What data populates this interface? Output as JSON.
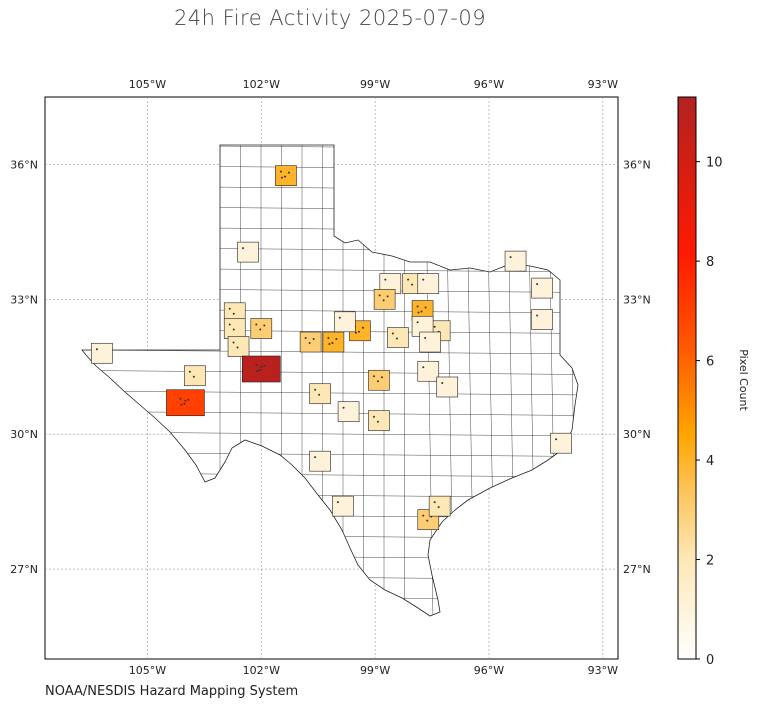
{
  "title": "24h Fire Activity 2025-07-09",
  "credit": "NOAA/NESDIS Hazard Mapping System",
  "colorbar": {
    "label": "Pixel Count",
    "ticks": [
      "0",
      "2",
      "4",
      "6",
      "8",
      "10"
    ],
    "min": 0,
    "max": 11.3,
    "colors": [
      "#ffffff",
      "#fde7b4",
      "#fdc35a",
      "#ffa500",
      "#ff5a00",
      "#ff1a00",
      "#b22222"
    ]
  },
  "axes": {
    "lon_labels": [
      "105°W",
      "102°W",
      "99°W",
      "96°W",
      "93°W"
    ],
    "lat_labels": [
      "36°N",
      "33°N",
      "30°N",
      "27°N"
    ],
    "lon_values": [
      -105,
      -102,
      -99,
      -96,
      -93
    ],
    "lat_values": [
      36,
      33,
      30,
      27
    ],
    "lon_range": [
      -107.7,
      -92.6
    ],
    "lat_range": [
      25.0,
      37.5
    ],
    "grid": true
  },
  "counties": [
    {
      "lon": -101.35,
      "lat": 35.75,
      "count": 4
    },
    {
      "lon": -102.35,
      "lat": 34.05,
      "count": 1
    },
    {
      "lon": -98.6,
      "lat": 33.35,
      "count": 1
    },
    {
      "lon": -98.0,
      "lat": 33.35,
      "count": 2
    },
    {
      "lon": -97.6,
      "lat": 33.35,
      "count": 1
    },
    {
      "lon": -95.3,
      "lat": 33.85,
      "count": 1
    },
    {
      "lon": -94.6,
      "lat": 33.25,
      "count": 1
    },
    {
      "lon": -94.6,
      "lat": 32.55,
      "count": 1
    },
    {
      "lon": -98.75,
      "lat": 33.0,
      "count": 3
    },
    {
      "lon": -97.75,
      "lat": 32.75,
      "count": 4
    },
    {
      "lon": -97.3,
      "lat": 32.3,
      "count": 2
    },
    {
      "lon": -97.75,
      "lat": 32.4,
      "count": 1
    },
    {
      "lon": -98.4,
      "lat": 32.15,
      "count": 2
    },
    {
      "lon": -97.55,
      "lat": 32.05,
      "count": 1
    },
    {
      "lon": -99.4,
      "lat": 32.3,
      "count": 4
    },
    {
      "lon": -100.1,
      "lat": 32.05,
      "count": 4
    },
    {
      "lon": -100.7,
      "lat": 32.05,
      "count": 3
    },
    {
      "lon": -99.8,
      "lat": 32.5,
      "count": 1
    },
    {
      "lon": -102.7,
      "lat": 32.7,
      "count": 2
    },
    {
      "lon": -102.7,
      "lat": 32.35,
      "count": 2
    },
    {
      "lon": -102.0,
      "lat": 32.35,
      "count": 3
    },
    {
      "lon": -102.6,
      "lat": 31.95,
      "count": 2
    },
    {
      "lon": -102.0,
      "lat": 31.45,
      "count": 11
    },
    {
      "lon": -103.75,
      "lat": 31.3,
      "count": 2
    },
    {
      "lon": -104.0,
      "lat": 30.7,
      "count": 7
    },
    {
      "lon": -106.2,
      "lat": 31.8,
      "count": 1
    },
    {
      "lon": -98.9,
      "lat": 31.2,
      "count": 3
    },
    {
      "lon": -97.6,
      "lat": 31.4,
      "count": 1
    },
    {
      "lon": -97.1,
      "lat": 31.05,
      "count": 1
    },
    {
      "lon": -100.45,
      "lat": 30.9,
      "count": 2
    },
    {
      "lon": -99.7,
      "lat": 30.5,
      "count": 1
    },
    {
      "lon": -98.9,
      "lat": 30.3,
      "count": 2
    },
    {
      "lon": -100.45,
      "lat": 29.4,
      "count": 1
    },
    {
      "lon": -99.85,
      "lat": 28.4,
      "count": 1
    },
    {
      "lon": -97.6,
      "lat": 28.1,
      "count": 3
    },
    {
      "lon": -97.3,
      "lat": 28.4,
      "count": 2
    },
    {
      "lon": -94.1,
      "lat": 29.8,
      "count": 1
    }
  ]
}
